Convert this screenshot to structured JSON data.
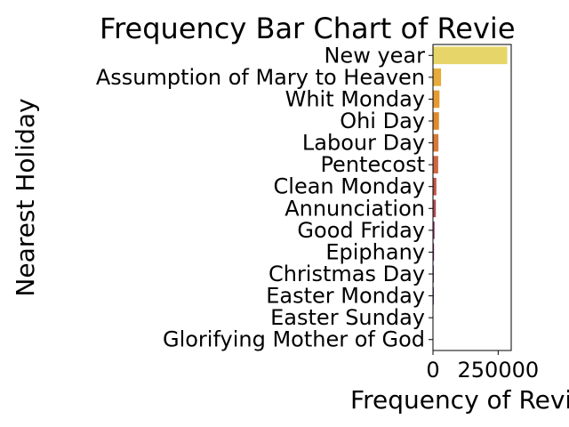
{
  "chart_data": {
    "type": "bar",
    "orientation": "horizontal",
    "title": "Frequency Bar Chart of Revie",
    "xlabel": "Frequency of Revie",
    "ylabel": "Nearest Holiday",
    "categories": [
      "New year",
      "Assumption of Mary to Heaven",
      "Whit Monday",
      "Ohi Day",
      "Labour Day",
      "Pentecost",
      "Clean Monday",
      "Annunciation",
      "Good Friday",
      "Epiphany",
      "Christmas Day",
      "Easter Monday",
      "Easter Sunday",
      "Glorifying Mother of God"
    ],
    "values": [
      285000,
      31000,
      25000,
      23000,
      21000,
      20000,
      13000,
      11000,
      6000,
      4000,
      3000,
      3000,
      1500,
      800
    ],
    "xlim": [
      0,
      300000
    ],
    "xticks": [
      0,
      250000
    ],
    "xtick_labels": [
      "0",
      "250000"
    ],
    "grid": false,
    "legend": "none",
    "colors": [
      "#e6d66a",
      "#e6ab38",
      "#e49b33",
      "#df8a2f",
      "#d97a3a",
      "#cd6642",
      "#c25448",
      "#b24a55",
      "#8e3a63",
      "#6e2a66",
      "#55205f",
      "#3f1654",
      "#2a0f40",
      "#1a0a2e"
    ]
  }
}
